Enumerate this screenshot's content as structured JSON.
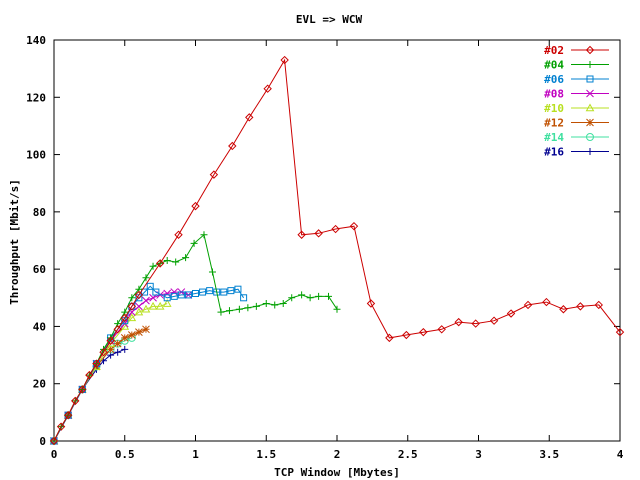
{
  "chart_data": {
    "type": "line",
    "title": "EVL => WCW",
    "xlabel": "TCP Window [Mbytes]",
    "ylabel": "Throughput [Mbit/s]",
    "xlim": [
      0,
      4
    ],
    "ylim": [
      0,
      140
    ],
    "xticks": [
      0,
      0.5,
      1,
      1.5,
      2,
      2.5,
      3,
      3.5,
      4
    ],
    "xtick_labels": [
      "0",
      "0.5",
      "1",
      "1.5",
      "2",
      "2.5",
      "3",
      "3.5",
      "4"
    ],
    "yticks": [
      0,
      20,
      40,
      60,
      80,
      100,
      120,
      140
    ],
    "ytick_labels": [
      "0",
      "20",
      "40",
      "60",
      "80",
      "100",
      "120",
      "140"
    ],
    "grid": false,
    "legend_position": "top-right",
    "series": [
      {
        "name": "#02",
        "color": "#cc0000",
        "marker": "diamond",
        "x": [
          0,
          0.05,
          0.1,
          0.15,
          0.2,
          0.25,
          0.3,
          0.35,
          0.4,
          0.45,
          0.5,
          0.55,
          0.6,
          0.75,
          0.88,
          1.0,
          1.13,
          1.26,
          1.38,
          1.51,
          1.63,
          1.75,
          1.87,
          1.99,
          2.12,
          2.24,
          2.37,
          2.49,
          2.61,
          2.74,
          2.86,
          2.98,
          3.11,
          3.23,
          3.35,
          3.48,
          3.6,
          3.72,
          3.85,
          4.0
        ],
        "y": [
          0,
          5,
          9,
          14,
          18,
          23,
          27,
          31,
          35,
          39,
          43,
          47,
          51,
          62,
          72,
          82,
          93,
          103,
          113,
          123,
          133,
          72,
          72.5,
          74,
          75,
          48,
          36,
          37,
          38,
          39,
          41.5,
          41,
          42,
          44.5,
          47.5,
          48.5,
          46,
          47,
          47.5,
          38
        ]
      },
      {
        "name": "#04",
        "color": "#00a000",
        "marker": "plus",
        "x": [
          0,
          0.05,
          0.1,
          0.15,
          0.2,
          0.25,
          0.3,
          0.35,
          0.4,
          0.45,
          0.5,
          0.55,
          0.6,
          0.65,
          0.7,
          0.75,
          0.8,
          0.86,
          0.93,
          0.99,
          1.06,
          1.12,
          1.18,
          1.24,
          1.31,
          1.37,
          1.43,
          1.5,
          1.56,
          1.62,
          1.68,
          1.75,
          1.81,
          1.87,
          1.94,
          2.0
        ],
        "y": [
          0,
          5,
          9,
          14,
          18,
          23,
          27,
          32,
          36,
          41,
          45,
          50,
          53,
          57,
          61,
          62,
          63,
          62.5,
          64,
          69,
          72,
          59,
          45,
          45.5,
          46,
          46.5,
          47,
          48,
          47.5,
          48,
          50,
          51,
          50,
          50.5,
          50.5,
          46
        ]
      },
      {
        "name": "#06",
        "color": "#0080d0",
        "marker": "square",
        "x": [
          0,
          0.1,
          0.2,
          0.3,
          0.4,
          0.5,
          0.55,
          0.6,
          0.64,
          0.68,
          0.72,
          0.8,
          0.85,
          0.9,
          0.95,
          1.0,
          1.05,
          1.1,
          1.15,
          1.2,
          1.25,
          1.3,
          1.34
        ],
        "y": [
          0,
          9,
          18,
          27,
          36,
          42,
          47,
          50,
          52,
          54,
          52,
          50,
          50.5,
          51,
          51,
          51.5,
          52,
          52.5,
          52,
          52,
          52.5,
          53,
          50
        ]
      },
      {
        "name": "#08",
        "color": "#c000c0",
        "marker": "x",
        "x": [
          0,
          0.1,
          0.2,
          0.3,
          0.4,
          0.5,
          0.55,
          0.6,
          0.65,
          0.7,
          0.75,
          0.8,
          0.85,
          0.9,
          0.95
        ],
        "y": [
          0,
          9,
          18,
          27,
          35,
          41,
          45,
          47,
          49,
          50,
          51,
          51.5,
          52,
          52,
          51
        ]
      },
      {
        "name": "#10",
        "color": "#b8e020",
        "marker": "triangle",
        "x": [
          0,
          0.1,
          0.2,
          0.3,
          0.4,
          0.5,
          0.55,
          0.6,
          0.65,
          0.7,
          0.75,
          0.8
        ],
        "y": [
          0,
          9,
          18,
          26,
          34,
          40,
          43,
          45,
          46,
          47,
          47,
          48
        ]
      },
      {
        "name": "#12",
        "color": "#c05000",
        "marker": "star",
        "x": [
          0,
          0.1,
          0.2,
          0.3,
          0.4,
          0.45,
          0.5,
          0.55,
          0.6,
          0.65
        ],
        "y": [
          0,
          9,
          18,
          26,
          32,
          34,
          36,
          37,
          38,
          39
        ]
      },
      {
        "name": "#14",
        "color": "#40e0a0",
        "marker": "circle",
        "x": [
          0,
          0.1,
          0.2,
          0.3,
          0.4,
          0.45,
          0.5,
          0.55
        ],
        "y": [
          0,
          9,
          18,
          26,
          32,
          34,
          35,
          36
        ]
      },
      {
        "name": "#16",
        "color": "#000090",
        "marker": "plus",
        "x": [
          0,
          0.1,
          0.2,
          0.3,
          0.35,
          0.4,
          0.45,
          0.5
        ],
        "y": [
          0,
          9,
          18,
          25,
          28,
          30,
          31,
          32
        ]
      }
    ]
  }
}
